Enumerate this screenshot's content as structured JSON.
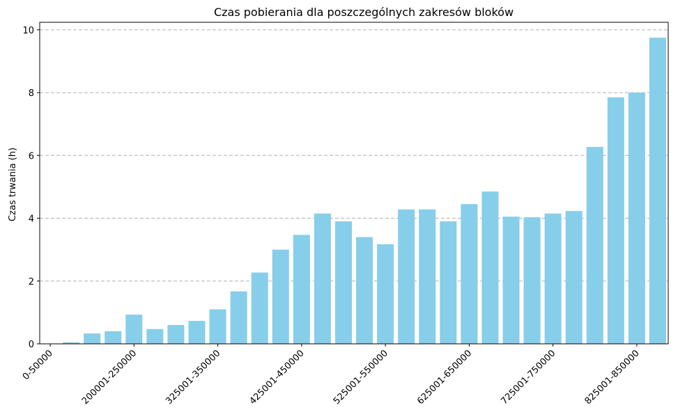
{
  "chart_data": {
    "type": "bar",
    "title": "Czas pobierania dla poszczególnych zakresów bloków",
    "xlabel": "",
    "ylabel": "Czas trwania (h)",
    "ylim": [
      0,
      10.24
    ],
    "yticks": [
      0,
      2,
      4,
      6,
      8,
      10
    ],
    "grid": "y-dashed",
    "bar_color": "#87CEEB",
    "categories": [
      "0-50000",
      "",
      "",
      "",
      "200001-250000",
      "",
      "",
      "",
      "325001-350000",
      "",
      "",
      "",
      "425001-450000",
      "",
      "",
      "",
      "525001-550000",
      "",
      "",
      "",
      "625001-650000",
      "",
      "",
      "",
      "725001-750000",
      "",
      "",
      "",
      "825001-850000",
      ""
    ],
    "tick_categories": [
      "0-50000",
      "200001-250000",
      "325001-350000",
      "425001-450000",
      "525001-550000",
      "625001-650000",
      "725001-750000",
      "825001-850000"
    ],
    "values": [
      0.0,
      0.05,
      0.33,
      0.4,
      0.93,
      0.47,
      0.6,
      0.73,
      1.1,
      1.67,
      2.27,
      3.0,
      3.47,
      4.15,
      3.9,
      3.4,
      3.17,
      4.28,
      4.28,
      3.9,
      4.45,
      4.85,
      4.05,
      4.03,
      4.15,
      4.23,
      6.27,
      7.85,
      8.0,
      9.75
    ]
  }
}
